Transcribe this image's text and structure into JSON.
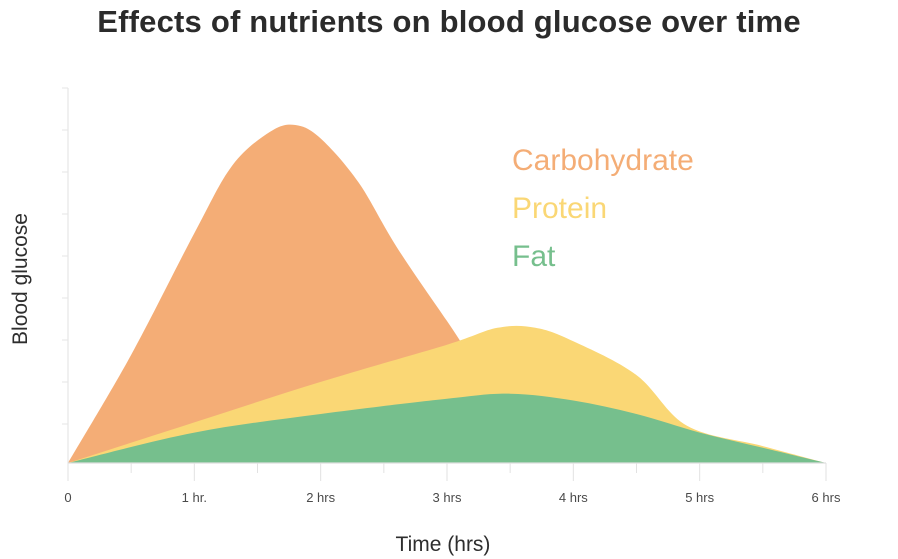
{
  "chart_data": {
    "type": "area",
    "title": "Effects of nutrients on blood glucose over time",
    "xlabel": "Time (hrs)",
    "ylabel": "Blood glucose",
    "x_ticks": [
      "0",
      "1 hr.",
      "2 hrs",
      "3 hrs",
      "4 hrs",
      "5 hrs",
      "6 hrs"
    ],
    "xlim": [
      0,
      6
    ],
    "ylim": [
      0,
      100
    ],
    "grid": false,
    "legend_position": "top-right",
    "series": [
      {
        "name": "Carbohydrate",
        "color": "#F4AD76",
        "points": [
          [
            0,
            0
          ],
          [
            0.5,
            32
          ],
          [
            1,
            68
          ],
          [
            1.3,
            88
          ],
          [
            1.6,
            98
          ],
          [
            1.8,
            100
          ],
          [
            2.0,
            96
          ],
          [
            2.3,
            83
          ],
          [
            2.6,
            64
          ],
          [
            3.0,
            42
          ],
          [
            3.3,
            26
          ],
          [
            3.6,
            17
          ],
          [
            4.0,
            12
          ],
          [
            4.5,
            6
          ],
          [
            5.0,
            3
          ],
          [
            5.5,
            1.5
          ],
          [
            6,
            0
          ]
        ]
      },
      {
        "name": "Protein",
        "color": "#FAD775",
        "points": [
          [
            0,
            0
          ],
          [
            1,
            12
          ],
          [
            2,
            24
          ],
          [
            3,
            35
          ],
          [
            3.4,
            40
          ],
          [
            3.7,
            40
          ],
          [
            4.0,
            36
          ],
          [
            4.5,
            26
          ],
          [
            4.9,
            11
          ],
          [
            5.5,
            5
          ],
          [
            6,
            0
          ]
        ]
      },
      {
        "name": "Fat",
        "color": "#76BF8D",
        "points": [
          [
            0,
            0
          ],
          [
            1,
            9
          ],
          [
            2,
            14.5
          ],
          [
            3,
            19
          ],
          [
            3.5,
            20.5
          ],
          [
            4,
            18.5
          ],
          [
            4.5,
            14.5
          ],
          [
            5,
            9
          ],
          [
            5.5,
            4.5
          ],
          [
            6,
            0
          ]
        ]
      }
    ]
  }
}
